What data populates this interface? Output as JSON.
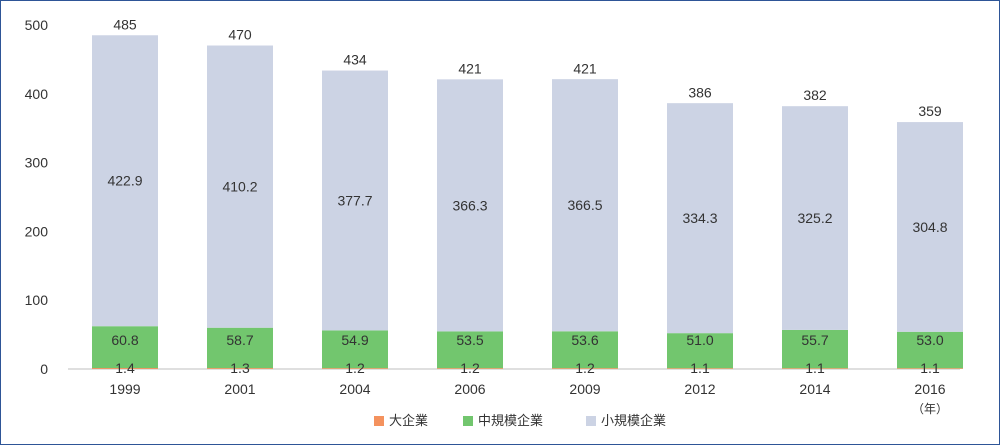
{
  "chart_data": {
    "type": "bar",
    "stacked": true,
    "title": "",
    "xlabel": "",
    "ylabel": "",
    "x_unit": "（年）",
    "categories": [
      "1999",
      "2001",
      "2004",
      "2006",
      "2009",
      "2012",
      "2014",
      "2016"
    ],
    "ylim": [
      0,
      500
    ],
    "yticks": [
      0,
      100,
      200,
      300,
      400,
      500
    ],
    "grid": false,
    "legend_position": "bottom",
    "totals": [
      485,
      470,
      434,
      421,
      421,
      386,
      382,
      359
    ],
    "series": [
      {
        "name": "大企業",
        "color": "#f4925e",
        "values": [
          1.4,
          1.3,
          1.2,
          1.2,
          1.2,
          1.1,
          1.1,
          1.1
        ],
        "labels": [
          "1.4",
          "1.3",
          "1.2",
          "1.2",
          "1.2",
          "1.1",
          "1.1",
          "1.1"
        ]
      },
      {
        "name": "中規模企業",
        "color": "#72c66e",
        "values": [
          60.8,
          58.7,
          54.9,
          53.5,
          53.6,
          51.0,
          55.7,
          53.0
        ],
        "labels": [
          "60.8",
          "58.7",
          "54.9",
          "53.5",
          "53.6",
          "51.0",
          "55.7",
          "53.0"
        ]
      },
      {
        "name": "小規模企業",
        "color": "#ccd3e4",
        "values": [
          422.9,
          410.2,
          377.7,
          366.3,
          366.5,
          334.3,
          325.2,
          304.8
        ],
        "labels": [
          "422.9",
          "410.2",
          "377.7",
          "366.3",
          "366.5",
          "334.3",
          "325.2",
          "304.8"
        ]
      }
    ]
  }
}
